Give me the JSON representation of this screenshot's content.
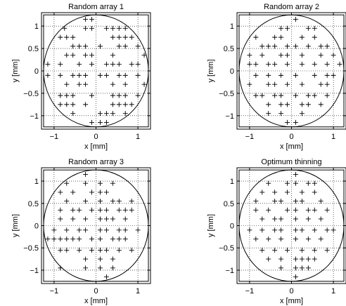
{
  "figure_colors": {
    "ink": "#000000",
    "grid": "#000000",
    "background": "#ffffff"
  },
  "chart_data": [
    {
      "type": "scatter",
      "title": "Random array 1",
      "xlabel": "x [mm]",
      "ylabel": "y [mm]",
      "xlim": [
        -1.3,
        1.3
      ],
      "ylim": [
        -1.3,
        1.3
      ],
      "xticks": [
        -1,
        0,
        1
      ],
      "xtick_labels": [
        "−1",
        "0",
        "1"
      ],
      "yticks": [
        1,
        0.5,
        0,
        -0.5,
        -1
      ],
      "ytick_labels": [
        "1",
        "0.5",
        "0",
        "−0.5",
        "−1"
      ],
      "grid": true,
      "marker": "+",
      "aperture_circle": {
        "center": [
          0,
          0
        ],
        "radius": 1.25
      },
      "aperture_square": {
        "x": [
          -1.25,
          1.25
        ],
        "y": [
          -1.25,
          1.25
        ]
      },
      "points": [
        [
          -0.25,
          1.15
        ],
        [
          -0.1,
          1.15
        ],
        [
          -0.75,
          0.95
        ],
        [
          -0.25,
          0.95
        ],
        [
          -0.1,
          0.95
        ],
        [
          0.25,
          0.95
        ],
        [
          0.4,
          0.95
        ],
        [
          0.55,
          0.95
        ],
        [
          0.7,
          0.95
        ],
        [
          -0.85,
          0.75
        ],
        [
          -0.7,
          0.75
        ],
        [
          -0.55,
          0.75
        ],
        [
          0.4,
          0.75
        ],
        [
          0.55,
          0.75
        ],
        [
          0.7,
          0.75
        ],
        [
          0.85,
          0.75
        ],
        [
          -0.55,
          0.55
        ],
        [
          -0.4,
          0.55
        ],
        [
          -0.25,
          0.55
        ],
        [
          0.1,
          0.55
        ],
        [
          0.55,
          0.55
        ],
        [
          0.7,
          0.55
        ],
        [
          1.0,
          0.55
        ],
        [
          -0.7,
          0.35
        ],
        [
          -0.55,
          0.35
        ],
        [
          -0.25,
          0.35
        ],
        [
          -0.1,
          0.35
        ],
        [
          0.4,
          0.35
        ],
        [
          1.15,
          0.35
        ],
        [
          -1.15,
          0.15
        ],
        [
          -0.85,
          0.15
        ],
        [
          -0.4,
          0.15
        ],
        [
          -0.1,
          0.15
        ],
        [
          0.25,
          0.15
        ],
        [
          0.4,
          0.15
        ],
        [
          0.55,
          0.15
        ],
        [
          0.85,
          0.15
        ],
        [
          1.0,
          0.15
        ],
        [
          -1.15,
          -0.1
        ],
        [
          -0.85,
          -0.1
        ],
        [
          -0.55,
          -0.1
        ],
        [
          -0.4,
          -0.1
        ],
        [
          -0.25,
          -0.1
        ],
        [
          0.1,
          -0.1
        ],
        [
          0.25,
          -0.1
        ],
        [
          0.55,
          -0.1
        ],
        [
          0.7,
          -0.1
        ],
        [
          1.0,
          -0.1
        ],
        [
          -0.7,
          -0.3
        ],
        [
          -0.4,
          -0.3
        ],
        [
          -0.25,
          -0.3
        ],
        [
          0.4,
          -0.3
        ],
        [
          0.7,
          -0.3
        ],
        [
          1.15,
          -0.3
        ],
        [
          -0.85,
          -0.55
        ],
        [
          -0.7,
          -0.55
        ],
        [
          -0.55,
          -0.55
        ],
        [
          -0.1,
          -0.55
        ],
        [
          0.4,
          -0.55
        ],
        [
          0.55,
          -0.55
        ],
        [
          0.7,
          -0.55
        ],
        [
          1.0,
          -0.55
        ],
        [
          -0.85,
          -0.75
        ],
        [
          -0.7,
          -0.75
        ],
        [
          -0.55,
          -0.75
        ],
        [
          -0.25,
          -0.75
        ],
        [
          0.4,
          -0.75
        ],
        [
          0.55,
          -0.75
        ],
        [
          0.7,
          -0.75
        ],
        [
          0.85,
          -0.75
        ],
        [
          -0.55,
          -0.95
        ],
        [
          0.1,
          -0.95
        ],
        [
          0.25,
          -0.95
        ],
        [
          0.4,
          -0.95
        ],
        [
          0.7,
          -0.95
        ],
        [
          -0.1,
          -1.15
        ],
        [
          0.1,
          -1.15
        ],
        [
          0.25,
          -1.15
        ]
      ]
    },
    {
      "type": "scatter",
      "title": "Random array 2",
      "xlabel": "x [mm]",
      "ylabel": "y [mm]",
      "xlim": [
        -1.3,
        1.3
      ],
      "ylim": [
        -1.3,
        1.3
      ],
      "xticks": [
        -1,
        0,
        1
      ],
      "xtick_labels": [
        "−1",
        "0",
        "1"
      ],
      "yticks": [
        1,
        0.5,
        0,
        -0.5,
        -1
      ],
      "ytick_labels": [
        "1",
        "0.5",
        "0",
        "−0.5",
        "−1"
      ],
      "grid": true,
      "marker": "+",
      "aperture_circle": {
        "center": [
          0,
          0
        ],
        "radius": 1.25
      },
      "aperture_square": {
        "x": [
          -1.25,
          1.25
        ],
        "y": [
          -1.25,
          1.25
        ]
      },
      "points": [
        [
          0.1,
          1.15
        ],
        [
          -0.25,
          0.95
        ],
        [
          -0.1,
          0.95
        ],
        [
          0.4,
          0.95
        ],
        [
          0.55,
          0.95
        ],
        [
          -0.85,
          0.75
        ],
        [
          -0.4,
          0.75
        ],
        [
          -0.25,
          0.75
        ],
        [
          0.25,
          0.75
        ],
        [
          0.55,
          0.75
        ],
        [
          -0.7,
          0.55
        ],
        [
          -0.55,
          0.55
        ],
        [
          -0.4,
          0.55
        ],
        [
          -0.1,
          0.55
        ],
        [
          0.1,
          0.55
        ],
        [
          0.4,
          0.55
        ],
        [
          0.7,
          0.55
        ],
        [
          0.85,
          0.55
        ],
        [
          -1.0,
          0.35
        ],
        [
          -0.7,
          0.35
        ],
        [
          -0.25,
          0.35
        ],
        [
          -0.1,
          0.35
        ],
        [
          0.25,
          0.35
        ],
        [
          0.7,
          0.35
        ],
        [
          1.0,
          0.35
        ],
        [
          -1.0,
          0.15
        ],
        [
          -0.85,
          0.15
        ],
        [
          -0.55,
          0.15
        ],
        [
          -0.4,
          0.15
        ],
        [
          -0.1,
          0.15
        ],
        [
          0.25,
          0.15
        ],
        [
          0.55,
          0.15
        ],
        [
          0.85,
          0.15
        ],
        [
          1.15,
          0.15
        ],
        [
          -0.85,
          -0.1
        ],
        [
          -0.55,
          -0.1
        ],
        [
          -0.25,
          -0.1
        ],
        [
          0.1,
          -0.1
        ],
        [
          0.55,
          -0.1
        ],
        [
          0.85,
          -0.1
        ],
        [
          1.0,
          -0.1
        ],
        [
          -1.0,
          -0.3
        ],
        [
          -0.55,
          -0.3
        ],
        [
          -0.4,
          -0.3
        ],
        [
          -0.1,
          -0.3
        ],
        [
          0.25,
          -0.3
        ],
        [
          0.7,
          -0.3
        ],
        [
          0.85,
          -0.3
        ],
        [
          -0.85,
          -0.55
        ],
        [
          -0.7,
          -0.55
        ],
        [
          -0.4,
          -0.55
        ],
        [
          -0.25,
          -0.55
        ],
        [
          0.1,
          -0.55
        ],
        [
          0.4,
          -0.55
        ],
        [
          0.55,
          -0.55
        ],
        [
          0.85,
          -0.55
        ],
        [
          -0.55,
          -0.75
        ],
        [
          -0.25,
          -0.75
        ],
        [
          -0.1,
          -0.75
        ],
        [
          0.25,
          -0.75
        ],
        [
          0.4,
          -0.75
        ],
        [
          0.7,
          -0.75
        ],
        [
          -0.55,
          -0.95
        ],
        [
          -0.25,
          -0.95
        ],
        [
          0.25,
          -0.95
        ],
        [
          -0.1,
          -1.15
        ],
        [
          0.1,
          -1.15
        ]
      ]
    },
    {
      "type": "scatter",
      "title": "Random array 3",
      "xlabel": "x [mm]",
      "ylabel": "y [mm]",
      "xlim": [
        -1.3,
        1.3
      ],
      "ylim": [
        -1.3,
        1.3
      ],
      "xticks": [
        -1,
        0,
        1
      ],
      "xtick_labels": [
        "−1",
        "0",
        "1"
      ],
      "yticks": [
        1,
        0.5,
        0,
        -0.5,
        -1
      ],
      "ytick_labels": [
        "1",
        "0.5",
        "0",
        "−0.5",
        "−1"
      ],
      "grid": true,
      "marker": "+",
      "aperture_circle": {
        "center": [
          0,
          0
        ],
        "radius": 1.25
      },
      "aperture_square": {
        "x": [
          -1.25,
          1.25
        ],
        "y": [
          -1.25,
          1.25
        ]
      },
      "points": [
        [
          -0.25,
          1.15
        ],
        [
          -0.7,
          0.95
        ],
        [
          -0.25,
          0.95
        ],
        [
          0.1,
          0.95
        ],
        [
          0.4,
          0.95
        ],
        [
          -0.85,
          0.75
        ],
        [
          -0.55,
          0.75
        ],
        [
          -0.1,
          0.75
        ],
        [
          0.1,
          0.75
        ],
        [
          0.25,
          0.75
        ],
        [
          -0.7,
          0.55
        ],
        [
          -0.25,
          0.55
        ],
        [
          0.1,
          0.55
        ],
        [
          0.4,
          0.55
        ],
        [
          0.55,
          0.55
        ],
        [
          0.85,
          0.55
        ],
        [
          -0.85,
          0.35
        ],
        [
          -0.55,
          0.35
        ],
        [
          -0.4,
          0.35
        ],
        [
          -0.1,
          0.35
        ],
        [
          0.1,
          0.35
        ],
        [
          0.25,
          0.35
        ],
        [
          0.55,
          0.35
        ],
        [
          0.7,
          0.35
        ],
        [
          0.85,
          0.35
        ],
        [
          -0.85,
          0.15
        ],
        [
          -0.55,
          0.15
        ],
        [
          -0.25,
          0.15
        ],
        [
          0.1,
          0.15
        ],
        [
          0.25,
          0.15
        ],
        [
          0.4,
          0.15
        ],
        [
          0.7,
          0.15
        ],
        [
          -1.0,
          -0.1
        ],
        [
          -0.7,
          -0.1
        ],
        [
          -0.4,
          -0.1
        ],
        [
          -0.25,
          -0.1
        ],
        [
          0.1,
          -0.1
        ],
        [
          0.25,
          -0.1
        ],
        [
          0.55,
          -0.1
        ],
        [
          0.7,
          -0.1
        ],
        [
          1.0,
          -0.1
        ],
        [
          -1.15,
          -0.3
        ],
        [
          -1.0,
          -0.3
        ],
        [
          -0.85,
          -0.3
        ],
        [
          -0.7,
          -0.3
        ],
        [
          -0.55,
          -0.3
        ],
        [
          -0.4,
          -0.3
        ],
        [
          -0.1,
          -0.3
        ],
        [
          0.1,
          -0.3
        ],
        [
          0.4,
          -0.3
        ],
        [
          0.55,
          -0.3
        ],
        [
          0.7,
          -0.3
        ],
        [
          -0.85,
          -0.55
        ],
        [
          -0.7,
          -0.55
        ],
        [
          -0.4,
          -0.55
        ],
        [
          -0.1,
          -0.55
        ],
        [
          0.1,
          -0.55
        ],
        [
          0.25,
          -0.55
        ],
        [
          0.55,
          -0.55
        ],
        [
          0.85,
          -0.55
        ],
        [
          -0.25,
          -0.75
        ],
        [
          0.1,
          -0.75
        ],
        [
          0.4,
          -0.75
        ],
        [
          -0.85,
          -0.95
        ],
        [
          -0.25,
          -0.95
        ],
        [
          0.1,
          -0.95
        ],
        [
          0.4,
          -0.95
        ],
        [
          0.25,
          -1.15
        ]
      ]
    },
    {
      "type": "scatter",
      "title": "Optimum thinning",
      "xlabel": "x [mm]",
      "ylabel": "y [mm]",
      "xlim": [
        -1.3,
        1.3
      ],
      "ylim": [
        -1.3,
        1.3
      ],
      "xticks": [
        -1,
        0,
        1
      ],
      "xtick_labels": [
        "−1",
        "0",
        "1"
      ],
      "yticks": [
        1,
        0.5,
        0,
        -0.5,
        -1
      ],
      "ytick_labels": [
        "1",
        "0.5",
        "0",
        "−0.5",
        "−1"
      ],
      "grid": true,
      "marker": "+",
      "aperture_circle": {
        "center": [
          0,
          0
        ],
        "radius": 1.25
      },
      "aperture_square": {
        "x": [
          -1.25,
          1.25
        ],
        "y": [
          -1.25,
          1.25
        ]
      },
      "points": [
        [
          0.1,
          1.15
        ],
        [
          -0.55,
          0.95
        ],
        [
          -0.1,
          0.95
        ],
        [
          0.1,
          0.95
        ],
        [
          0.4,
          0.95
        ],
        [
          0.55,
          0.95
        ],
        [
          -0.7,
          0.75
        ],
        [
          -0.4,
          0.75
        ],
        [
          -0.1,
          0.75
        ],
        [
          0.25,
          0.75
        ],
        [
          0.55,
          0.75
        ],
        [
          -0.85,
          0.55
        ],
        [
          -0.4,
          0.55
        ],
        [
          -0.25,
          0.55
        ],
        [
          0.1,
          0.55
        ],
        [
          0.25,
          0.55
        ],
        [
          0.7,
          0.55
        ],
        [
          -0.85,
          0.35
        ],
        [
          -0.55,
          0.35
        ],
        [
          -0.1,
          0.35
        ],
        [
          0.1,
          0.35
        ],
        [
          0.4,
          0.35
        ],
        [
          0.55,
          0.35
        ],
        [
          0.85,
          0.35
        ],
        [
          -0.7,
          0.15
        ],
        [
          -0.4,
          0.15
        ],
        [
          -0.25,
          0.15
        ],
        [
          0.1,
          0.15
        ],
        [
          0.4,
          0.15
        ],
        [
          0.7,
          0.15
        ],
        [
          -1.0,
          -0.1
        ],
        [
          -0.7,
          -0.1
        ],
        [
          -0.4,
          -0.1
        ],
        [
          -0.25,
          -0.1
        ],
        [
          0.1,
          -0.1
        ],
        [
          0.25,
          -0.1
        ],
        [
          0.55,
          -0.1
        ],
        [
          0.85,
          -0.1
        ],
        [
          1.0,
          -0.1
        ],
        [
          -0.85,
          -0.3
        ],
        [
          -0.55,
          -0.3
        ],
        [
          -0.25,
          -0.3
        ],
        [
          0.1,
          -0.3
        ],
        [
          0.4,
          -0.3
        ],
        [
          0.7,
          -0.3
        ],
        [
          -0.7,
          -0.55
        ],
        [
          -0.4,
          -0.55
        ],
        [
          -0.1,
          -0.55
        ],
        [
          0.25,
          -0.55
        ],
        [
          0.55,
          -0.55
        ],
        [
          0.85,
          -0.55
        ],
        [
          -0.55,
          -0.75
        ],
        [
          -0.25,
          -0.75
        ],
        [
          0.1,
          -0.75
        ],
        [
          0.25,
          -0.75
        ],
        [
          0.4,
          -0.75
        ],
        [
          0.55,
          -0.75
        ],
        [
          -0.25,
          -0.95
        ],
        [
          0.1,
          -0.95
        ],
        [
          0.25,
          -0.95
        ],
        [
          0.4,
          -0.95
        ],
        [
          0.1,
          -1.15
        ]
      ]
    }
  ]
}
